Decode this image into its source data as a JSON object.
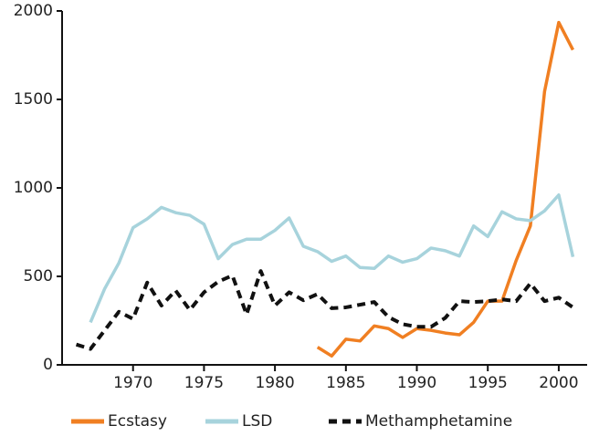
{
  "chart_data": {
    "type": "line",
    "x": [
      1966,
      1967,
      1968,
      1969,
      1970,
      1971,
      1972,
      1973,
      1974,
      1975,
      1976,
      1977,
      1978,
      1979,
      1980,
      1981,
      1982,
      1983,
      1984,
      1985,
      1986,
      1987,
      1988,
      1989,
      1990,
      1991,
      1992,
      1993,
      1994,
      1995,
      1996,
      1997,
      1998,
      1999,
      2000,
      2001
    ],
    "series": [
      {
        "name": "Ecstasy",
        "color": "#f07f22",
        "dash": false,
        "values": [
          null,
          null,
          null,
          null,
          null,
          null,
          null,
          null,
          null,
          null,
          null,
          null,
          null,
          null,
          null,
          null,
          null,
          100,
          50,
          145,
          135,
          220,
          205,
          155,
          205,
          195,
          180,
          170,
          240,
          360,
          360,
          590,
          785,
          1545,
          1935,
          1780
        ]
      },
      {
        "name": "LSD",
        "color": "#a7d3dc",
        "dash": false,
        "values": [
          null,
          240,
          430,
          575,
          775,
          825,
          890,
          860,
          845,
          795,
          600,
          680,
          710,
          710,
          760,
          830,
          670,
          640,
          585,
          615,
          550,
          545,
          615,
          580,
          600,
          660,
          645,
          615,
          785,
          725,
          865,
          825,
          815,
          870,
          960,
          610
        ]
      },
      {
        "name": "Methamphetamine",
        "color": "#111111",
        "dash": true,
        "values": [
          115,
          90,
          195,
          300,
          260,
          465,
          335,
          420,
          310,
          410,
          470,
          505,
          285,
          530,
          335,
          410,
          365,
          400,
          320,
          325,
          340,
          355,
          270,
          230,
          215,
          215,
          265,
          360,
          355,
          360,
          370,
          360,
          460,
          360,
          380,
          325
        ]
      }
    ],
    "xlim": [
      1965,
      2002
    ],
    "xticks": [
      1970,
      1975,
      1980,
      1985,
      1990,
      1995,
      2000
    ],
    "ylim": [
      0,
      2000
    ],
    "yticks": [
      0,
      500,
      1000,
      1500,
      2000
    ],
    "grid": false,
    "legend": "bottom"
  }
}
